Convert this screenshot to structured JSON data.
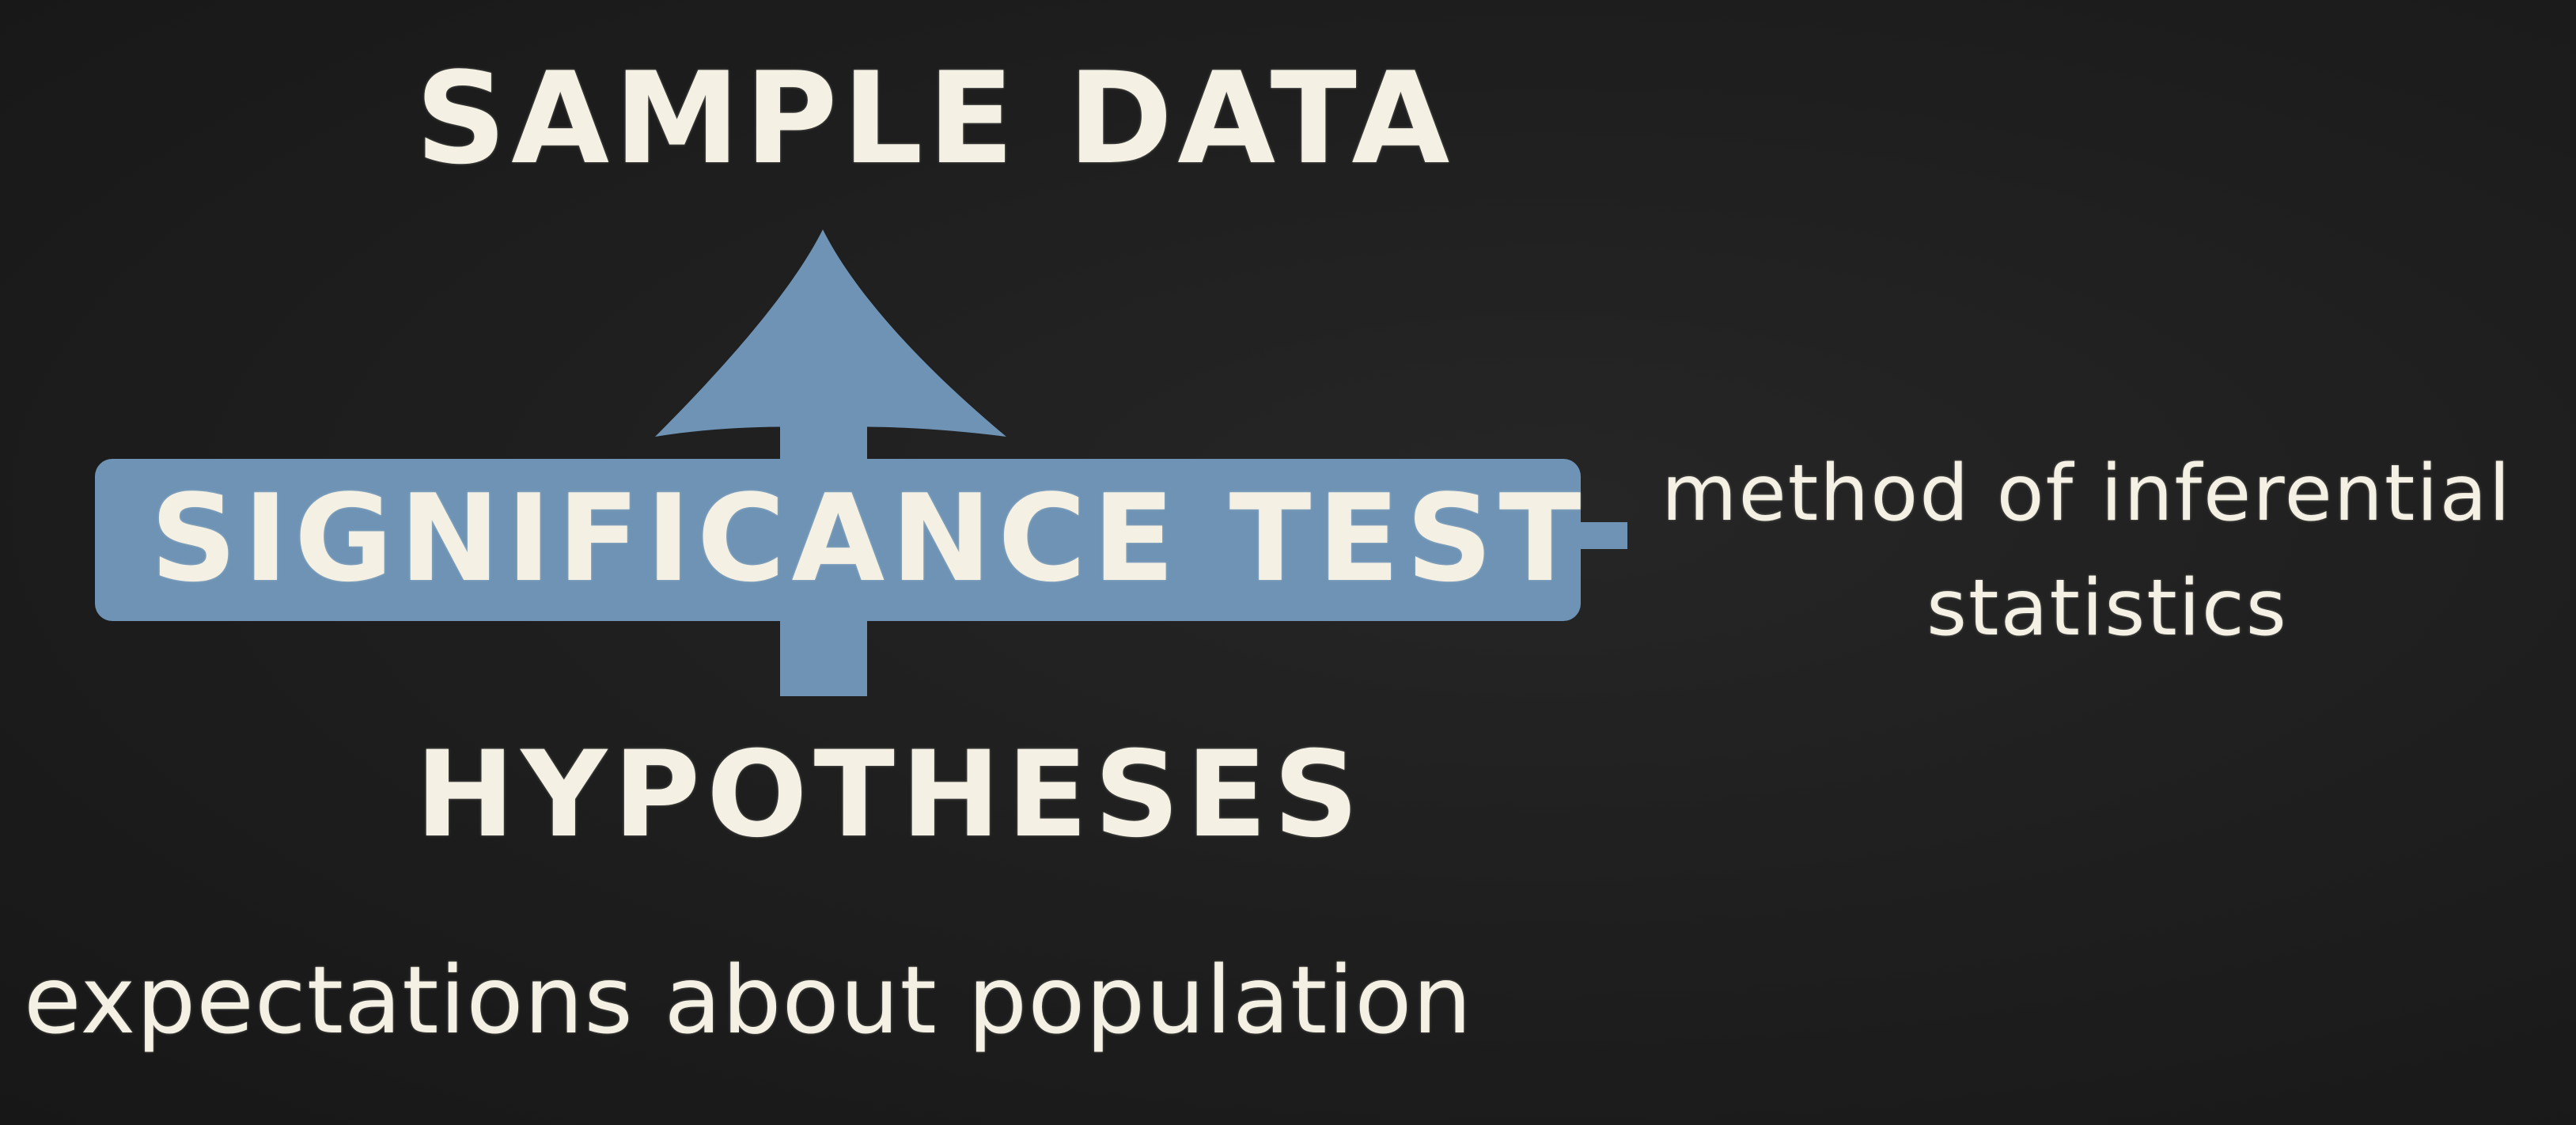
{
  "diagram": {
    "top_label": "SAMPLE DATA",
    "center_label": "SIGNIFICANCE TEST",
    "bottom_label": "HYPOTHESES",
    "bottom_caption": "expectations about population",
    "side_note_line1": "method of inferential",
    "side_note_line2": "statistics"
  },
  "colors": {
    "background": "#1b1b1b",
    "chalk_text": "#f4f1e4",
    "accent_blue": "#6e93b5"
  }
}
